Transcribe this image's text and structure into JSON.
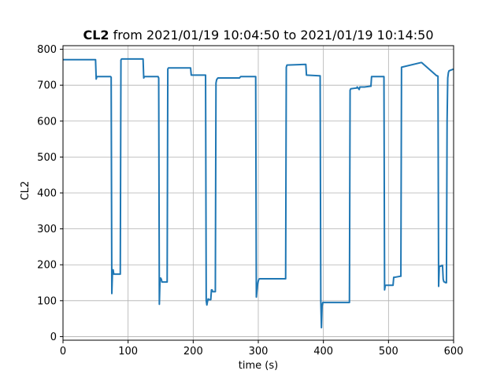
{
  "chart_data": {
    "type": "line",
    "title": {
      "bold": "CL2",
      "rest": " from 2021/01/19 10:04:50 to 2021/01/19 10:14:50"
    },
    "xlabel": "time (s)",
    "ylabel": "CL2",
    "xlim": [
      0,
      600
    ],
    "ylim": [
      -10,
      810
    ],
    "xticks": [
      0,
      100,
      200,
      300,
      400,
      500,
      600
    ],
    "yticks": [
      0,
      100,
      200,
      300,
      400,
      500,
      600,
      700,
      800
    ],
    "grid": true,
    "colors": {
      "line": "#1f77b4",
      "grid": "#b0b0b0",
      "axis": "#000000"
    },
    "series": [
      {
        "x": [
          0,
          50,
          51,
          52,
          73,
          74,
          75,
          76,
          77,
          78,
          88,
          89,
          90,
          123,
          124,
          125,
          146,
          147,
          148,
          149,
          150,
          151,
          152,
          153,
          154,
          160,
          161,
          162,
          196,
          197,
          219,
          220,
          221,
          222,
          223,
          224,
          227,
          228,
          229,
          230,
          234,
          235,
          236,
          237,
          238,
          239,
          271,
          272,
          273,
          296,
          297,
          298,
          299,
          300,
          301,
          302,
          342,
          343,
          344,
          373,
          374,
          394,
          395,
          396,
          397,
          398,
          399,
          439,
          440,
          441,
          442,
          450,
          451,
          452,
          455,
          456,
          460,
          463,
          472,
          473,
          474,
          493,
          494,
          495,
          496,
          507,
          508,
          509,
          518,
          519,
          520,
          550,
          551,
          574,
          575,
          576,
          577,
          578,
          583,
          584,
          585,
          586,
          588,
          589,
          590,
          591,
          592,
          593,
          600
        ],
        "y": [
          771,
          771,
          717,
          724,
          724,
          722,
          120,
          180,
          186,
          174,
          174,
          770,
          773,
          773,
          720,
          724,
          724,
          720,
          90,
          160,
          163,
          160,
          152,
          152,
          152,
          152,
          745,
          748,
          748,
          728,
          728,
          100,
          88,
          98,
          105,
          103,
          103,
          130,
          130,
          125,
          125,
          706,
          715,
          718,
          720,
          720,
          720,
          722,
          724,
          724,
          110,
          130,
          145,
          155,
          160,
          161,
          161,
          750,
          756,
          758,
          728,
          726,
          726,
          100,
          25,
          85,
          95,
          95,
          95,
          686,
          690,
          692,
          692,
          695,
          688,
          695,
          695,
          695,
          697,
          697,
          724,
          724,
          130,
          142,
          143,
          143,
          165,
          165,
          168,
          168,
          750,
          763,
          763,
          726,
          726,
          725,
          140,
          195,
          198,
          160,
          153,
          152,
          150,
          150,
          600,
          720,
          735,
          740,
          745
        ]
      }
    ]
  }
}
